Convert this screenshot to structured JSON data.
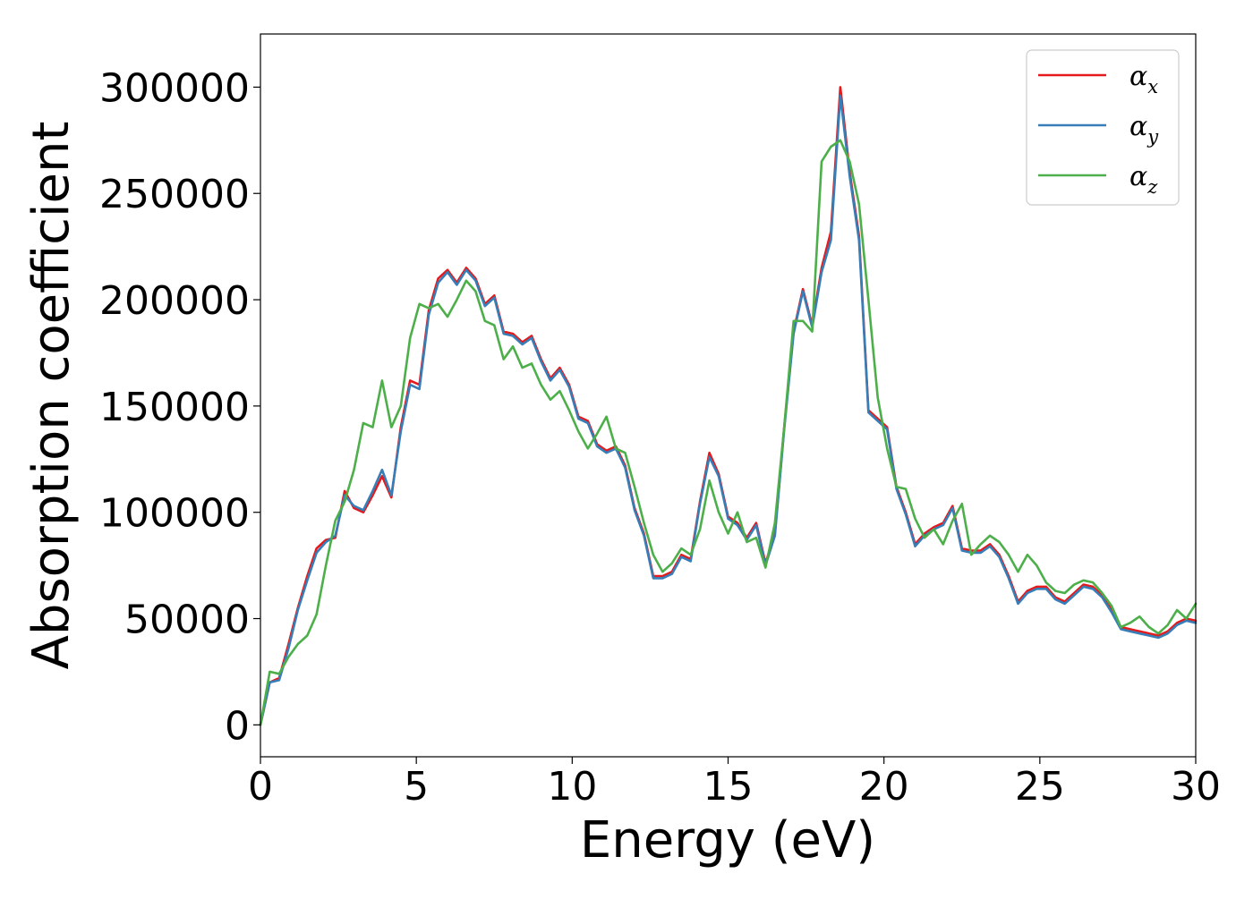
{
  "chart_data": {
    "type": "line",
    "xlabel": "Energy (eV)",
    "ylabel": "Absorption coefficient",
    "xlim": [
      0,
      30
    ],
    "ylim": [
      -15000,
      325000
    ],
    "xticks": [
      0,
      5,
      10,
      15,
      20,
      25,
      30
    ],
    "xtick_labels": [
      "0",
      "5",
      "10",
      "15",
      "20",
      "25",
      "30"
    ],
    "yticks": [
      0,
      50000,
      100000,
      150000,
      200000,
      250000,
      300000
    ],
    "ytick_labels": [
      "0",
      "50000",
      "100000",
      "150000",
      "200000",
      "250000",
      "300000"
    ],
    "grid": false,
    "legend_position": "top-right",
    "series": [
      {
        "name": "α",
        "subscript": "x",
        "color": "#e41a1c",
        "x": [
          0,
          0.3,
          0.6,
          0.9,
          1.2,
          1.5,
          1.8,
          2.1,
          2.4,
          2.7,
          3.0,
          3.3,
          3.6,
          3.9,
          4.2,
          4.5,
          4.8,
          5.1,
          5.4,
          5.7,
          6.0,
          6.3,
          6.6,
          6.9,
          7.2,
          7.5,
          7.8,
          8.1,
          8.4,
          8.7,
          9.0,
          9.3,
          9.6,
          9.9,
          10.2,
          10.5,
          10.8,
          11.1,
          11.4,
          11.7,
          12.0,
          12.3,
          12.6,
          12.9,
          13.2,
          13.5,
          13.8,
          14.1,
          14.4,
          14.7,
          15.0,
          15.3,
          15.6,
          15.9,
          16.2,
          16.5,
          16.8,
          17.1,
          17.4,
          17.7,
          18.0,
          18.3,
          18.6,
          18.9,
          19.2,
          19.5,
          19.8,
          20.1,
          20.4,
          20.7,
          21.0,
          21.3,
          21.6,
          21.9,
          22.2,
          22.5,
          22.8,
          23.1,
          23.4,
          23.7,
          24.0,
          24.3,
          24.6,
          24.9,
          25.2,
          25.5,
          25.8,
          26.1,
          26.4,
          26.7,
          27.0,
          27.3,
          27.6,
          27.9,
          28.2,
          28.5,
          28.8,
          29.1,
          29.4,
          29.7,
          30.0
        ],
        "y": [
          0,
          20000,
          22000,
          38000,
          55000,
          70000,
          83000,
          87000,
          88000,
          110000,
          102000,
          100000,
          108000,
          117000,
          107000,
          140000,
          162000,
          160000,
          195000,
          210000,
          214000,
          208000,
          215000,
          210000,
          198000,
          202000,
          185000,
          184000,
          180000,
          183000,
          172000,
          163000,
          168000,
          160000,
          145000,
          143000,
          132000,
          129000,
          131000,
          122000,
          102000,
          90000,
          70000,
          70000,
          72000,
          80000,
          78000,
          105000,
          128000,
          118000,
          98000,
          95000,
          88000,
          95000,
          76000,
          90000,
          140000,
          185000,
          205000,
          188000,
          215000,
          232000,
          300000,
          260000,
          230000,
          148000,
          144000,
          140000,
          112000,
          100000,
          85000,
          90000,
          93000,
          95000,
          103000,
          83000,
          82000,
          82000,
          85000,
          80000,
          70000,
          58000,
          63000,
          65000,
          65000,
          60000,
          58000,
          62000,
          66000,
          65000,
          61000,
          54000,
          46000,
          45000,
          44000,
          43000,
          42000,
          44000,
          48000,
          50000,
          49000
        ]
      },
      {
        "name": "α",
        "subscript": "y",
        "color": "#377eb8",
        "x": [
          0,
          0.3,
          0.6,
          0.9,
          1.2,
          1.5,
          1.8,
          2.1,
          2.4,
          2.7,
          3.0,
          3.3,
          3.6,
          3.9,
          4.2,
          4.5,
          4.8,
          5.1,
          5.4,
          5.7,
          6.0,
          6.3,
          6.6,
          6.9,
          7.2,
          7.5,
          7.8,
          8.1,
          8.4,
          8.7,
          9.0,
          9.3,
          9.6,
          9.9,
          10.2,
          10.5,
          10.8,
          11.1,
          11.4,
          11.7,
          12.0,
          12.3,
          12.6,
          12.9,
          13.2,
          13.5,
          13.8,
          14.1,
          14.4,
          14.7,
          15.0,
          15.3,
          15.6,
          15.9,
          16.2,
          16.5,
          16.8,
          17.1,
          17.4,
          17.7,
          18.0,
          18.3,
          18.6,
          18.9,
          19.2,
          19.5,
          19.8,
          20.1,
          20.4,
          20.7,
          21.0,
          21.3,
          21.6,
          21.9,
          22.2,
          22.5,
          22.8,
          23.1,
          23.4,
          23.7,
          24.0,
          24.3,
          24.6,
          24.9,
          25.2,
          25.5,
          25.8,
          26.1,
          26.4,
          26.7,
          27.0,
          27.3,
          27.6,
          27.9,
          28.2,
          28.5,
          28.8,
          29.1,
          29.4,
          29.7,
          30.0
        ],
        "y": [
          0,
          20000,
          21000,
          36000,
          54000,
          68000,
          81000,
          86000,
          89000,
          108000,
          103000,
          101000,
          110000,
          120000,
          108000,
          138000,
          160000,
          158000,
          193000,
          208000,
          213000,
          207000,
          214000,
          209000,
          197000,
          201000,
          184000,
          183000,
          179000,
          182000,
          171000,
          162000,
          167000,
          159000,
          144000,
          142000,
          131000,
          128000,
          130000,
          121000,
          101000,
          89000,
          69000,
          69000,
          71000,
          79000,
          77000,
          104000,
          126000,
          117000,
          97000,
          94000,
          87000,
          94000,
          75000,
          89000,
          139000,
          184000,
          204000,
          187000,
          213000,
          228000,
          296000,
          258000,
          228000,
          147000,
          143000,
          139000,
          111000,
          99000,
          84000,
          89000,
          92000,
          94000,
          102000,
          82000,
          81000,
          81000,
          84000,
          79000,
          69000,
          57000,
          62000,
          64000,
          64000,
          59000,
          57000,
          61000,
          65000,
          64000,
          60000,
          53000,
          45000,
          44000,
          43000,
          42000,
          41000,
          43000,
          47000,
          49000,
          48000
        ]
      },
      {
        "name": "α",
        "subscript": "z",
        "color": "#4daf4a",
        "x": [
          0,
          0.3,
          0.6,
          0.9,
          1.2,
          1.5,
          1.8,
          2.1,
          2.4,
          2.7,
          3.0,
          3.3,
          3.6,
          3.9,
          4.2,
          4.5,
          4.8,
          5.1,
          5.4,
          5.7,
          6.0,
          6.3,
          6.6,
          6.9,
          7.2,
          7.5,
          7.8,
          8.1,
          8.4,
          8.7,
          9.0,
          9.3,
          9.6,
          9.9,
          10.2,
          10.5,
          10.8,
          11.1,
          11.4,
          11.7,
          12.0,
          12.3,
          12.6,
          12.9,
          13.2,
          13.5,
          13.8,
          14.1,
          14.4,
          14.7,
          15.0,
          15.3,
          15.6,
          15.9,
          16.2,
          16.5,
          16.8,
          17.1,
          17.4,
          17.7,
          18.0,
          18.3,
          18.6,
          18.9,
          19.2,
          19.5,
          19.8,
          20.1,
          20.4,
          20.7,
          21.0,
          21.3,
          21.6,
          21.9,
          22.2,
          22.5,
          22.8,
          23.1,
          23.4,
          23.7,
          24.0,
          24.3,
          24.6,
          24.9,
          25.2,
          25.5,
          25.8,
          26.1,
          26.4,
          26.7,
          27.0,
          27.3,
          27.6,
          27.9,
          28.2,
          28.5,
          28.8,
          29.1,
          29.4,
          29.7,
          30.0
        ],
        "y": [
          0,
          25000,
          24000,
          32000,
          38000,
          42000,
          52000,
          75000,
          96000,
          105000,
          120000,
          142000,
          140000,
          162000,
          140000,
          150000,
          182000,
          198000,
          196000,
          198000,
          192000,
          200000,
          209000,
          204000,
          190000,
          188000,
          172000,
          178000,
          168000,
          170000,
          160000,
          153000,
          157000,
          148000,
          138000,
          130000,
          137000,
          145000,
          130000,
          128000,
          112000,
          95000,
          80000,
          72000,
          76000,
          83000,
          80000,
          92000,
          115000,
          100000,
          90000,
          100000,
          86000,
          88000,
          74000,
          95000,
          140000,
          190000,
          190000,
          185000,
          265000,
          272000,
          275000,
          265000,
          245000,
          200000,
          154000,
          130000,
          112000,
          111000,
          97000,
          88000,
          92000,
          85000,
          96000,
          104000,
          80000,
          85000,
          89000,
          86000,
          80000,
          72000,
          80000,
          75000,
          67000,
          63000,
          62000,
          66000,
          68000,
          67000,
          62000,
          56000,
          46000,
          48000,
          51000,
          46000,
          43000,
          47000,
          54000,
          50000,
          57000
        ]
      }
    ]
  }
}
